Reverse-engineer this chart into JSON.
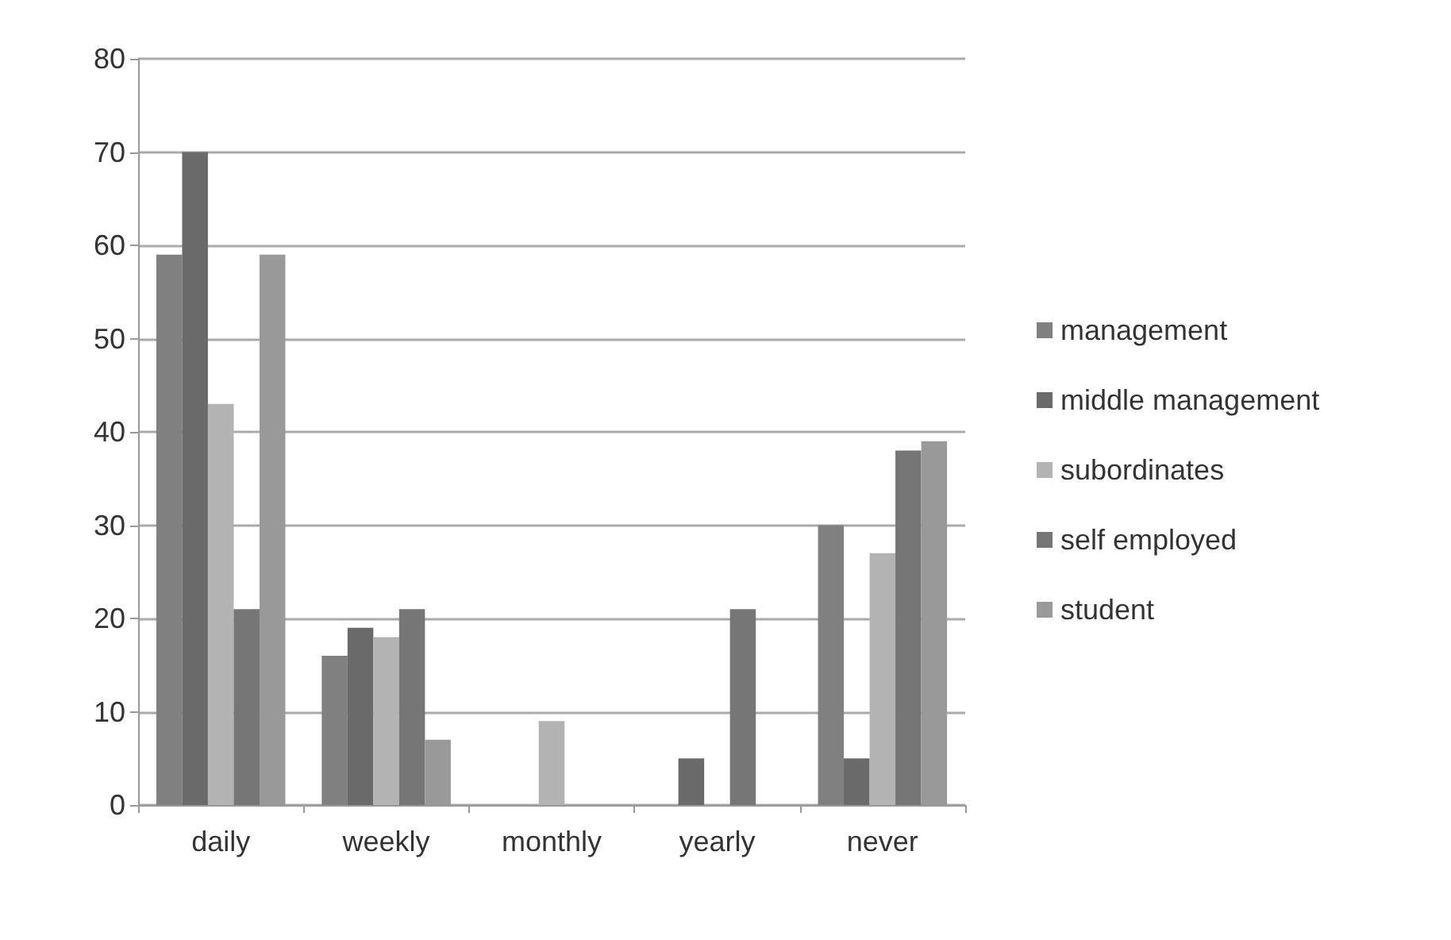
{
  "chart_data": {
    "type": "bar",
    "categories": [
      "daily",
      "weekly",
      "monthly",
      "yearly",
      "never"
    ],
    "series": [
      {
        "name": "management",
        "color": "#808080",
        "values": [
          59,
          16,
          0,
          0,
          30
        ]
      },
      {
        "name": "middle management",
        "color": "#6a6a6a",
        "values": [
          70,
          19,
          0,
          5,
          5
        ]
      },
      {
        "name": "subordinates",
        "color": "#b3b3b3",
        "values": [
          43,
          18,
          9,
          0,
          27
        ]
      },
      {
        "name": "self employed",
        "color": "#767676",
        "values": [
          21,
          21,
          0,
          21,
          38
        ]
      },
      {
        "name": "student",
        "color": "#999999",
        "values": [
          59,
          7,
          0,
          0,
          39
        ]
      }
    ],
    "ylim": [
      0,
      80
    ],
    "yticks": [
      0,
      10,
      20,
      30,
      40,
      50,
      60,
      70,
      80
    ],
    "grid": "y",
    "legend": "right"
  }
}
